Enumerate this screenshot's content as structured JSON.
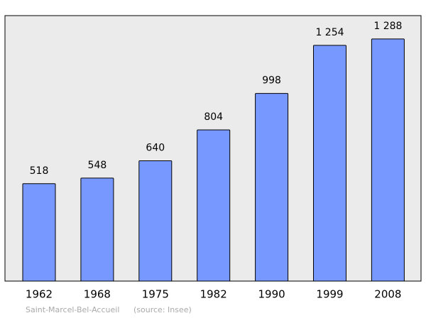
{
  "chart_data": {
    "type": "bar",
    "categories": [
      "1962",
      "1968",
      "1975",
      "1982",
      "1990",
      "1999",
      "2008"
    ],
    "values": [
      518,
      548,
      640,
      804,
      998,
      1254,
      1288
    ],
    "value_labels": [
      "518",
      "548",
      "640",
      "804",
      "998",
      "1 254",
      "1 288"
    ],
    "color": "#7799ff",
    "ylim": [
      0,
      1412
    ],
    "place": "Saint-Marcel-Bel-Accueil",
    "source": "(source: Insee)"
  }
}
